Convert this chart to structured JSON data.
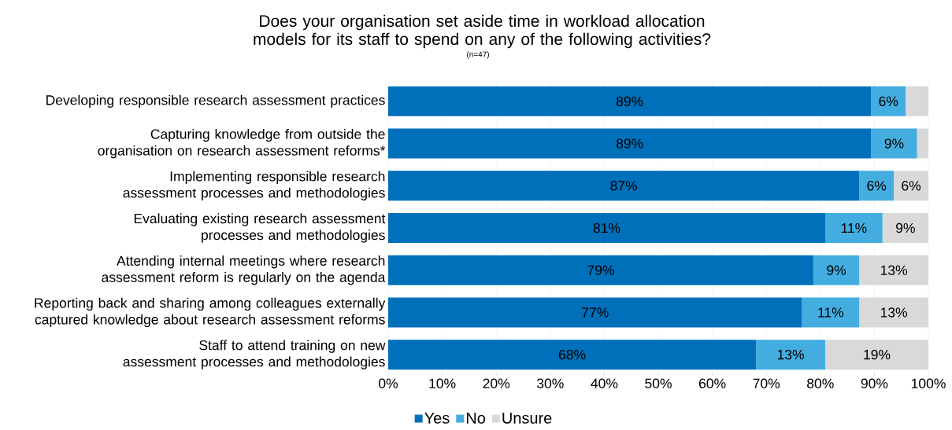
{
  "chart_data": {
    "type": "bar",
    "orientation": "horizontal",
    "stacked": true,
    "title": "Does your organisation set aside time in workload allocation models for its staff to spend on any of the following activities?",
    "subtitle": "(n=47)",
    "categories": [
      "Developing responsible research assessment practices",
      "Capturing knowledge from outside the organisation on research assessment reforms*",
      "Implementing responsible research assessment processes and methodologies",
      "Evaluating existing research assessment processes and methodologies",
      "Attending internal meetings where research assessment reform is regularly on the agenda",
      "Reporting back and sharing among colleagues externally captured knowledge about research assessment reforms",
      "Staff to attend training on new assessment processes and methodologies"
    ],
    "series": [
      {
        "name": "Yes",
        "color": "#0070bb",
        "values": [
          89.4,
          89.4,
          87.2,
          80.9,
          78.7,
          76.6,
          68.1
        ],
        "value_labels": [
          "89%",
          "89%",
          "87%",
          "81%",
          "79%",
          "77%",
          "68%"
        ]
      },
      {
        "name": "No",
        "color": "#44ade0",
        "values": [
          6.4,
          8.5,
          6.4,
          10.6,
          8.5,
          10.6,
          12.8
        ],
        "value_labels": [
          "6%",
          "9%",
          "6%",
          "11%",
          "9%",
          "11%",
          "13%"
        ]
      },
      {
        "name": "Unsure",
        "color": "#d9d9d9",
        "values": [
          4.2,
          2.1,
          6.4,
          8.5,
          12.8,
          12.8,
          19.1
        ],
        "value_labels": [
          null,
          null,
          "6%",
          "9%",
          "13%",
          "13%",
          "19%"
        ]
      }
    ],
    "xlim": [
      0,
      100
    ],
    "xticks": [
      {
        "value": 0,
        "label": "0%"
      },
      {
        "value": 10,
        "label": "10%"
      },
      {
        "value": 20,
        "label": "20%"
      },
      {
        "value": 30,
        "label": "30%"
      },
      {
        "value": 40,
        "label": "40%"
      },
      {
        "value": 50,
        "label": "50%"
      },
      {
        "value": 60,
        "label": "60%"
      },
      {
        "value": 70,
        "label": "70%"
      },
      {
        "value": 80,
        "label": "80%"
      },
      {
        "value": 90,
        "label": "90%"
      },
      {
        "value": 100,
        "label": "100%"
      }
    ],
    "grid": "x",
    "legend": "bottom"
  }
}
